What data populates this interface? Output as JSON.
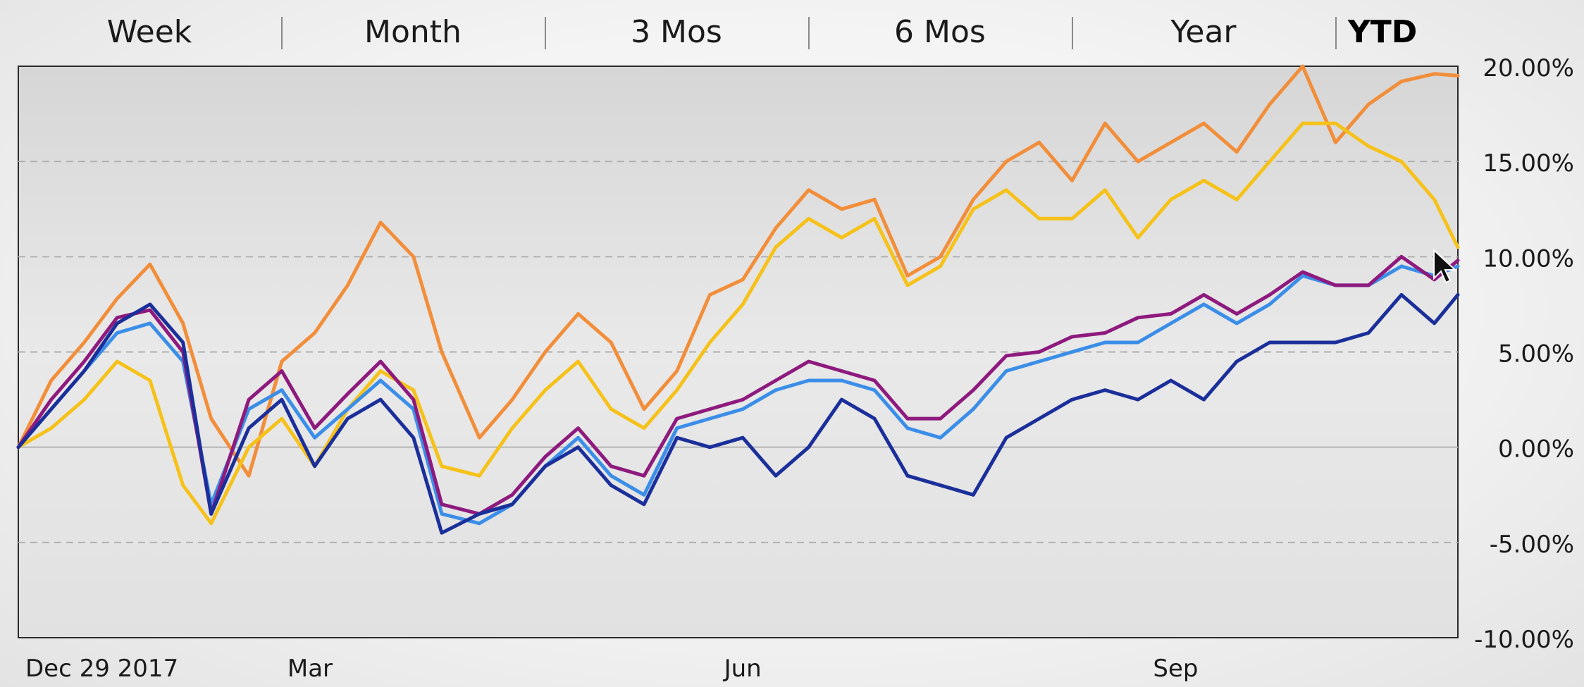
{
  "tabs": [
    {
      "label": "Week",
      "active": false
    },
    {
      "label": "Month",
      "active": false
    },
    {
      "label": "3 Mos",
      "active": false
    },
    {
      "label": "6 Mos",
      "active": false
    },
    {
      "label": "Year",
      "active": false
    },
    {
      "label": "YTD",
      "active": true
    }
  ],
  "chart_data": {
    "type": "line",
    "title": "",
    "xlabel": "",
    "ylabel": "",
    "x_range": [
      "2017-12-29",
      "2018-10-31"
    ],
    "ylim": [
      -10,
      20
    ],
    "y_ticks": [
      {
        "value": 20,
        "label": "20.00%"
      },
      {
        "value": 15,
        "label": "15.00%"
      },
      {
        "value": 10,
        "label": "10.00%"
      },
      {
        "value": 5,
        "label": "5.00%"
      },
      {
        "value": 0,
        "label": "0.00%"
      },
      {
        "value": -5,
        "label": "-5.00%"
      },
      {
        "value": -10,
        "label": "-10.00%"
      }
    ],
    "x_ticks": [
      {
        "date": "2017-12-29",
        "label": "Dec 29 2017"
      },
      {
        "date": "2018-03-01",
        "label": "Mar"
      },
      {
        "date": "2018-06-01",
        "label": "Jun"
      },
      {
        "date": "2018-09-01",
        "label": "Sep"
      }
    ],
    "grid": "horizontal-dashed",
    "legend": "none",
    "series": [
      {
        "color": "#f28e3a",
        "x": [
          "2017-12-29",
          "2018-01-05",
          "2018-01-12",
          "2018-01-19",
          "2018-01-26",
          "2018-02-02",
          "2018-02-08",
          "2018-02-16",
          "2018-02-23",
          "2018-03-02",
          "2018-03-09",
          "2018-03-16",
          "2018-03-23",
          "2018-03-29",
          "2018-04-06",
          "2018-04-13",
          "2018-04-20",
          "2018-04-27",
          "2018-05-04",
          "2018-05-11",
          "2018-05-18",
          "2018-05-25",
          "2018-06-01",
          "2018-06-08",
          "2018-06-15",
          "2018-06-22",
          "2018-06-29",
          "2018-07-06",
          "2018-07-13",
          "2018-07-20",
          "2018-07-27",
          "2018-08-03",
          "2018-08-10",
          "2018-08-17",
          "2018-08-24",
          "2018-08-31",
          "2018-09-07",
          "2018-09-14",
          "2018-09-21",
          "2018-09-28",
          "2018-10-05",
          "2018-10-12",
          "2018-10-19",
          "2018-10-26",
          "2018-10-31"
        ],
        "y": [
          0,
          3.5,
          5.5,
          7.8,
          9.6,
          6.5,
          1.5,
          -1.5,
          4.5,
          6,
          8.5,
          11.8,
          10,
          5,
          0.5,
          2.5,
          5,
          7,
          5.5,
          2,
          4,
          8,
          8.8,
          11.5,
          13.5,
          12.5,
          13,
          9,
          10,
          13,
          15,
          16,
          14,
          17,
          15,
          16,
          17,
          15.5,
          18,
          20,
          16,
          18,
          19.2,
          19.6,
          19.5
        ]
      },
      {
        "color": "#f6c21a",
        "x": [
          "2017-12-29",
          "2018-01-05",
          "2018-01-12",
          "2018-01-19",
          "2018-01-26",
          "2018-02-02",
          "2018-02-08",
          "2018-02-16",
          "2018-02-23",
          "2018-03-02",
          "2018-03-09",
          "2018-03-16",
          "2018-03-23",
          "2018-03-29",
          "2018-04-06",
          "2018-04-13",
          "2018-04-20",
          "2018-04-27",
          "2018-05-04",
          "2018-05-11",
          "2018-05-18",
          "2018-05-25",
          "2018-06-01",
          "2018-06-08",
          "2018-06-15",
          "2018-06-22",
          "2018-06-29",
          "2018-07-06",
          "2018-07-13",
          "2018-07-20",
          "2018-07-27",
          "2018-08-03",
          "2018-08-10",
          "2018-08-17",
          "2018-08-24",
          "2018-08-31",
          "2018-09-07",
          "2018-09-14",
          "2018-09-21",
          "2018-09-28",
          "2018-10-05",
          "2018-10-12",
          "2018-10-19",
          "2018-10-26",
          "2018-10-31"
        ],
        "y": [
          0,
          1,
          2.5,
          4.5,
          3.5,
          -2,
          -4,
          0,
          1.5,
          -1,
          2,
          4,
          3,
          -1,
          -1.5,
          1,
          3,
          4.5,
          2,
          1,
          3,
          5.5,
          7.5,
          10.5,
          12,
          11,
          12,
          8.5,
          9.5,
          12.5,
          13.5,
          12,
          12,
          13.5,
          11,
          13,
          14,
          13,
          15,
          17,
          17,
          15.8,
          15,
          13,
          10.5
        ]
      },
      {
        "color": "#3b8ee8",
        "x": [
          "2017-12-29",
          "2018-01-05",
          "2018-01-12",
          "2018-01-19",
          "2018-01-26",
          "2018-02-02",
          "2018-02-08",
          "2018-02-16",
          "2018-02-23",
          "2018-03-02",
          "2018-03-09",
          "2018-03-16",
          "2018-03-23",
          "2018-03-29",
          "2018-04-06",
          "2018-04-13",
          "2018-04-20",
          "2018-04-27",
          "2018-05-04",
          "2018-05-11",
          "2018-05-18",
          "2018-05-25",
          "2018-06-01",
          "2018-06-08",
          "2018-06-15",
          "2018-06-22",
          "2018-06-29",
          "2018-07-06",
          "2018-07-13",
          "2018-07-20",
          "2018-07-27",
          "2018-08-03",
          "2018-08-10",
          "2018-08-17",
          "2018-08-24",
          "2018-08-31",
          "2018-09-07",
          "2018-09-14",
          "2018-09-21",
          "2018-09-28",
          "2018-10-05",
          "2018-10-12",
          "2018-10-19",
          "2018-10-26",
          "2018-10-31"
        ],
        "y": [
          0,
          2,
          4,
          6,
          6.5,
          4.5,
          -3,
          2,
          3,
          0.5,
          2,
          3.5,
          2,
          -3.5,
          -4,
          -3,
          -1,
          0.5,
          -1.5,
          -2.5,
          1,
          1.5,
          2,
          3,
          3.5,
          3.5,
          3,
          1,
          0.5,
          2,
          4,
          4.5,
          5,
          5.5,
          5.5,
          6.5,
          7.5,
          6.5,
          7.5,
          9,
          8.5,
          8.5,
          9.5,
          9,
          9.5
        ]
      },
      {
        "color": "#8e1a7e",
        "x": [
          "2017-12-29",
          "2018-01-05",
          "2018-01-12",
          "2018-01-19",
          "2018-01-26",
          "2018-02-02",
          "2018-02-08",
          "2018-02-16",
          "2018-02-23",
          "2018-03-02",
          "2018-03-09",
          "2018-03-16",
          "2018-03-23",
          "2018-03-29",
          "2018-04-06",
          "2018-04-13",
          "2018-04-20",
          "2018-04-27",
          "2018-05-04",
          "2018-05-11",
          "2018-05-18",
          "2018-05-25",
          "2018-06-01",
          "2018-06-08",
          "2018-06-15",
          "2018-06-22",
          "2018-06-29",
          "2018-07-06",
          "2018-07-13",
          "2018-07-20",
          "2018-07-27",
          "2018-08-03",
          "2018-08-10",
          "2018-08-17",
          "2018-08-24",
          "2018-08-31",
          "2018-09-07",
          "2018-09-14",
          "2018-09-21",
          "2018-09-28",
          "2018-10-05",
          "2018-10-12",
          "2018-10-19",
          "2018-10-26",
          "2018-10-31"
        ],
        "y": [
          0,
          2.5,
          4.5,
          6.8,
          7.2,
          5,
          -3.5,
          2.5,
          4,
          1,
          2.8,
          4.5,
          2.5,
          -3,
          -3.5,
          -2.5,
          -0.5,
          1,
          -1,
          -1.5,
          1.5,
          2,
          2.5,
          3.5,
          4.5,
          4,
          3.5,
          1.5,
          1.5,
          3,
          4.8,
          5,
          5.8,
          6,
          6.8,
          7,
          8,
          7,
          8,
          9.2,
          8.5,
          8.5,
          10,
          8.8,
          9.8
        ]
      },
      {
        "color": "#1b2f9a",
        "x": [
          "2017-12-29",
          "2018-01-05",
          "2018-01-12",
          "2018-01-19",
          "2018-01-26",
          "2018-02-02",
          "2018-02-08",
          "2018-02-16",
          "2018-02-23",
          "2018-03-02",
          "2018-03-09",
          "2018-03-16",
          "2018-03-23",
          "2018-03-29",
          "2018-04-06",
          "2018-04-13",
          "2018-04-20",
          "2018-04-27",
          "2018-05-04",
          "2018-05-11",
          "2018-05-18",
          "2018-05-25",
          "2018-06-01",
          "2018-06-08",
          "2018-06-15",
          "2018-06-22",
          "2018-06-29",
          "2018-07-06",
          "2018-07-13",
          "2018-07-20",
          "2018-07-27",
          "2018-08-03",
          "2018-08-10",
          "2018-08-17",
          "2018-08-24",
          "2018-08-31",
          "2018-09-07",
          "2018-09-14",
          "2018-09-21",
          "2018-09-28",
          "2018-10-05",
          "2018-10-12",
          "2018-10-19",
          "2018-10-26",
          "2018-10-31"
        ],
        "y": [
          0,
          2,
          4,
          6.5,
          7.5,
          5.5,
          -3.5,
          1,
          2.5,
          -1,
          1.5,
          2.5,
          0.5,
          -4.5,
          -3.5,
          -3,
          -1,
          0,
          -2,
          -3,
          0.5,
          0,
          0.5,
          -1.5,
          0,
          2.5,
          1.5,
          -1.5,
          -2,
          -2.5,
          0.5,
          1.5,
          2.5,
          3,
          2.5,
          3.5,
          2.5,
          4.5,
          5.5,
          5.5,
          5.5,
          6,
          8,
          6.5,
          8
        ]
      }
    ]
  }
}
